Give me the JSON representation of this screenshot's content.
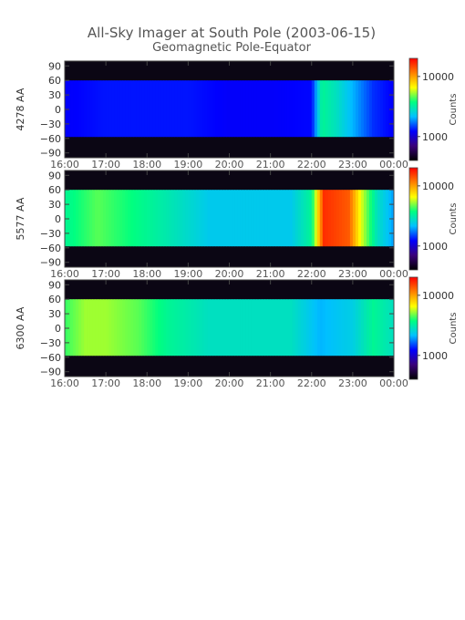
{
  "chart_data": {
    "type": "heatmap",
    "title": "All-Sky Imager at South Pole (2003-06-15)",
    "subtitle": "Geomagnetic Pole-Equator",
    "x_tick_labels": [
      "16:00",
      "17:00",
      "18:00",
      "19:00",
      "20:00",
      "21:00",
      "22:00",
      "23:00",
      "00:00"
    ],
    "x_range_hours": [
      16,
      24
    ],
    "y_tick_values": [
      90,
      60,
      30,
      0,
      -30,
      -60,
      -90
    ],
    "y_tick_labels": [
      "90",
      "60",
      "30",
      "0",
      "−30",
      "−60",
      "−90"
    ],
    "ylim": [
      -100,
      100
    ],
    "colorbar_label": "Counts",
    "colorbar_ticks": [
      {
        "value": 10000,
        "label": "10000"
      },
      {
        "value": 1000,
        "label": "1000"
      }
    ],
    "colorbar_range": [
      400,
      20000
    ],
    "colormap": [
      "#000000",
      "#3a007a",
      "#0000ff",
      "#00c0ff",
      "#00ff80",
      "#ffff00",
      "#ff8000",
      "#ff0000"
    ],
    "panels": [
      {
        "ylabel": "4278 AA",
        "valid_lat_range": [
          -57,
          60
        ],
        "background_level": 0.3,
        "intensity_profile_by_hour": [
          {
            "hour": 16.0,
            "level": 0.28
          },
          {
            "hour": 17.0,
            "level": 0.3
          },
          {
            "hour": 18.0,
            "level": 0.3
          },
          {
            "hour": 19.0,
            "level": 0.3
          },
          {
            "hour": 20.0,
            "level": 0.28
          },
          {
            "hour": 21.0,
            "level": 0.28
          },
          {
            "hour": 22.0,
            "level": 0.29
          },
          {
            "hour": 22.25,
            "level": 0.55
          },
          {
            "hour": 22.6,
            "level": 0.5
          },
          {
            "hour": 23.0,
            "level": 0.42
          },
          {
            "hour": 23.5,
            "level": 0.32
          },
          {
            "hour": 24.0,
            "level": 0.28
          }
        ]
      },
      {
        "ylabel": "5577 AA",
        "valid_lat_range": [
          -57,
          60
        ],
        "background_level": 0.45,
        "intensity_profile_by_hour": [
          {
            "hour": 16.0,
            "level": 0.55
          },
          {
            "hour": 16.8,
            "level": 0.62
          },
          {
            "hour": 17.5,
            "level": 0.58
          },
          {
            "hour": 18.5,
            "level": 0.52
          },
          {
            "hour": 19.5,
            "level": 0.45
          },
          {
            "hour": 20.5,
            "level": 0.45
          },
          {
            "hour": 21.5,
            "level": 0.45
          },
          {
            "hour": 22.0,
            "level": 0.55
          },
          {
            "hour": 22.3,
            "level": 0.95
          },
          {
            "hour": 22.9,
            "level": 0.9
          },
          {
            "hour": 23.2,
            "level": 0.7
          },
          {
            "hour": 23.6,
            "level": 0.5
          },
          {
            "hour": 24.0,
            "level": 0.4
          }
        ]
      },
      {
        "ylabel": "6300 AA",
        "valid_lat_range": [
          -57,
          60
        ],
        "background_level": 0.5,
        "intensity_profile_by_hour": [
          {
            "hour": 16.0,
            "level": 0.6
          },
          {
            "hour": 16.5,
            "level": 0.66
          },
          {
            "hour": 17.0,
            "level": 0.66
          },
          {
            "hour": 17.8,
            "level": 0.62
          },
          {
            "hour": 18.5,
            "level": 0.55
          },
          {
            "hour": 19.5,
            "level": 0.5
          },
          {
            "hour": 20.5,
            "level": 0.5
          },
          {
            "hour": 21.5,
            "level": 0.5
          },
          {
            "hour": 22.2,
            "level": 0.42
          },
          {
            "hour": 23.0,
            "level": 0.46
          },
          {
            "hour": 23.5,
            "level": 0.55
          },
          {
            "hour": 24.0,
            "level": 0.5
          }
        ]
      }
    ]
  }
}
